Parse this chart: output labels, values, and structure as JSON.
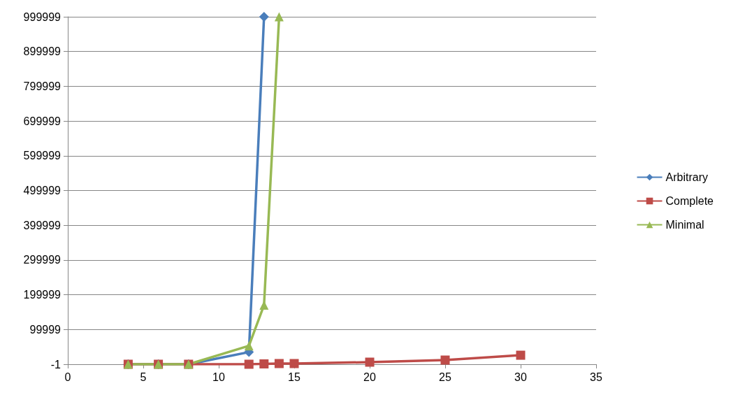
{
  "chart_data": {
    "type": "line",
    "xlim": [
      0,
      35
    ],
    "xticks": [
      0,
      5,
      10,
      15,
      20,
      25,
      30,
      35
    ],
    "ylim": [
      -1,
      999999
    ],
    "yticks": [
      -1,
      99999,
      199999,
      299999,
      399999,
      499999,
      599999,
      699999,
      799999,
      899999,
      999999
    ],
    "grid": "y",
    "legend": "right",
    "series": [
      {
        "name": "Arbitrary",
        "color": "#4a7ebb",
        "marker": "diamond",
        "x": [
          4,
          6,
          8,
          12,
          13
        ],
        "values": [
          0,
          0,
          0,
          35000,
          999999
        ]
      },
      {
        "name": "Complete",
        "color": "#be4b48",
        "marker": "square",
        "x": [
          4,
          6,
          8,
          12,
          13,
          14,
          15,
          20,
          25,
          30
        ],
        "values": [
          0,
          0,
          0,
          0,
          1000,
          2000,
          2000,
          6000,
          12000,
          26000
        ]
      },
      {
        "name": "Minimal",
        "color": "#98b954",
        "marker": "triangle",
        "x": [
          4,
          6,
          8,
          12,
          13,
          14
        ],
        "values": [
          0,
          0,
          0,
          53000,
          170000,
          999999
        ]
      }
    ]
  }
}
